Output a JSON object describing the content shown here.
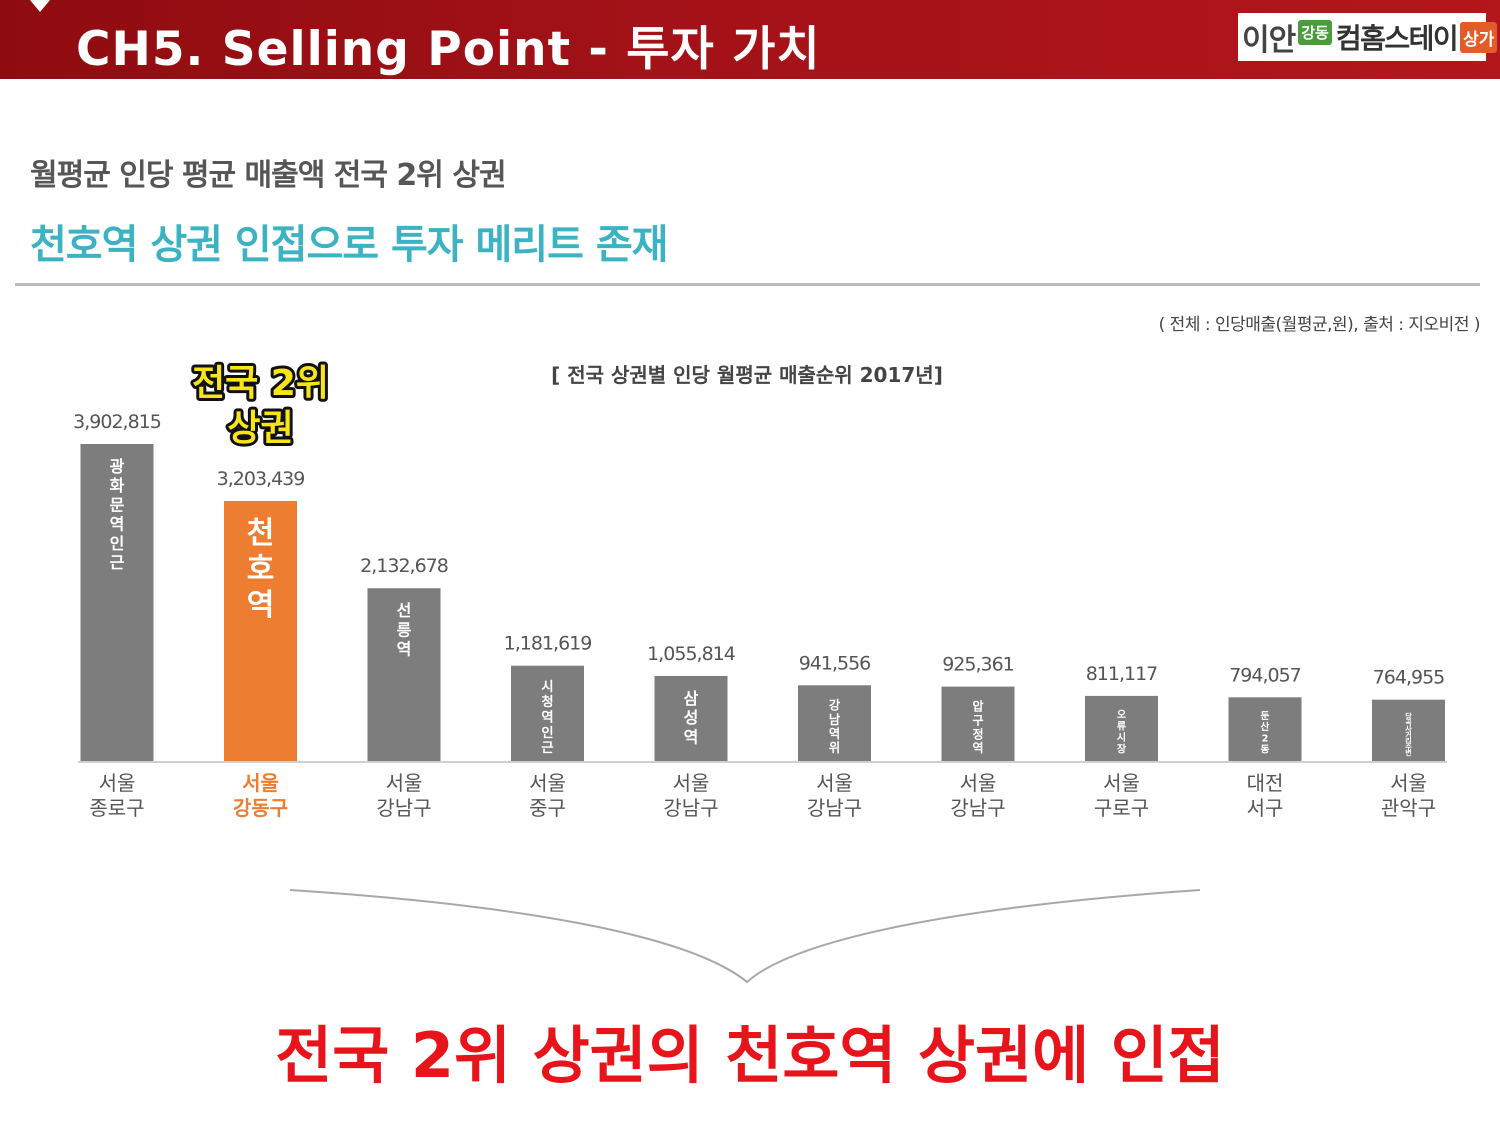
{
  "header": {
    "title": "CH5. Selling Point - 투자 가치",
    "logo": {
      "main": "이안",
      "badge_green": "강동",
      "name": "컴홈스테이",
      "badge_red": "상가"
    }
  },
  "headline": {
    "subtitle1": "월평균 인당 평균 매출액 전국 2위 상권",
    "subtitle2": "천호역 상권 인접으로 투자 메리트 존재"
  },
  "colors": {
    "header": "#a31218",
    "accent_teal": "#3cb3c2",
    "bar_default": "#7d7d7d",
    "bar_highlight": "#ed7d31",
    "conclusion": "#e8141b"
  },
  "chart_data": {
    "type": "bar",
    "title": "[ 전국 상권별 인당 월평균 매출순위 2017년]",
    "source_note": "( 전체 : 인당매출(월평균,원), 출처 : 지오비전 )",
    "callout": [
      "전국 2위",
      "상권"
    ],
    "categories": [
      [
        "서울",
        "종로구"
      ],
      [
        "서울",
        "강동구"
      ],
      [
        "서울",
        "강남구"
      ],
      [
        "서울",
        "중구"
      ],
      [
        "서울",
        "강남구"
      ],
      [
        "서울",
        "강남구"
      ],
      [
        "서울",
        "강남구"
      ],
      [
        "서울",
        "구로구"
      ],
      [
        "대전",
        "서구"
      ],
      [
        "서울",
        "관악구"
      ]
    ],
    "bar_labels": [
      "광화문역인근",
      "천호역",
      "선릉역",
      "시청역인근",
      "삼성역",
      "강남역위",
      "압구정역",
      "오류시장",
      "둔산2동",
      "당곡사거리주변"
    ],
    "values": [
      3902815,
      3203439,
      2132678,
      1181619,
      1055814,
      941556,
      925361,
      811117,
      794057,
      764955
    ],
    "value_labels": [
      "3,902,815",
      "3,203,439",
      "2,132,678",
      "1,181,619",
      "1,055,814",
      "941,556",
      "925,361",
      "811,117",
      "794,057",
      "764,955"
    ],
    "highlight_index": 1,
    "ylim": [
      0,
      3902815
    ],
    "grid": false,
    "legend": "none"
  },
  "conclusion": "전국 2위 상권의 천호역 상권에 인접"
}
